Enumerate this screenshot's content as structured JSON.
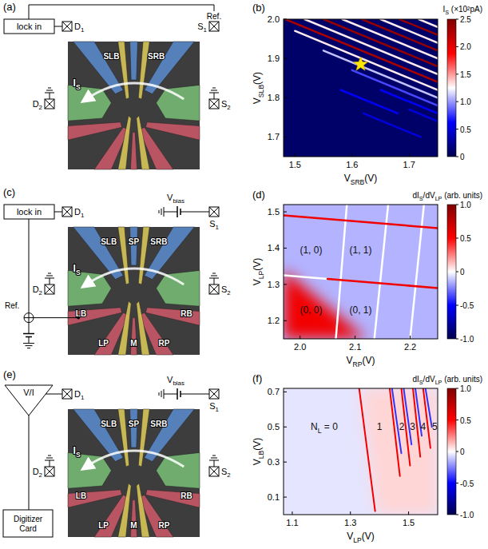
{
  "chart_data": [
    {
      "type": "diagram",
      "title": "(a)",
      "labels": {
        "lock_in": "lock in",
        "d1": [
          {
            "t": "D"
          },
          {
            "sub": "1"
          }
        ],
        "s1": [
          {
            "t": "S"
          },
          {
            "sub": "1"
          }
        ],
        "ref": "Ref.",
        "d2": [
          {
            "t": "D"
          },
          {
            "sub": "2"
          }
        ],
        "s2": [
          {
            "t": "S"
          },
          {
            "sub": "2"
          }
        ],
        "current": [
          {
            "t": "I"
          },
          {
            "sub": "S"
          }
        ],
        "top_gates": [
          "SLB",
          "SRB"
        ]
      }
    },
    {
      "type": "heatmap",
      "title": "(b)",
      "xlabel": [
        {
          "t": "V"
        },
        {
          "sub": "SRB"
        },
        {
          "t": "(V)"
        }
      ],
      "ylabel": [
        {
          "t": "V"
        },
        {
          "sub": "SLB"
        },
        {
          "t": "(V)"
        }
      ],
      "xlim": [
        1.48,
        1.75
      ],
      "xticks": [
        1.5,
        1.6,
        1.7
      ],
      "ylim": [
        1.65,
        2.0
      ],
      "yticks": [
        1.7,
        1.8,
        1.9,
        {
          "value": 2,
          "label": "2.0"
        }
      ],
      "colorbar": {
        "label": [
          {
            "t": "I"
          },
          {
            "sub": "S"
          },
          {
            "t": " (×10²pA)"
          }
        ],
        "range": [
          0,
          2.5
        ],
        "ticks": [
          0,
          0.5,
          {
            "value": 1,
            "label": "1.0"
          },
          1.5,
          {
            "value": 2,
            "label": "2.0"
          },
          2.5
        ]
      },
      "background": 0.1,
      "lines": [
        {
          "x": [
            1.7,
            1.75
          ],
          "y": [
            1.77,
            1.74
          ],
          "value": 0.5
        },
        {
          "x": [
            1.65,
            1.75
          ],
          "y": [
            1.82,
            1.76
          ],
          "value": 0.6
        },
        {
          "x": [
            1.6,
            1.75
          ],
          "y": [
            1.87,
            1.78
          ],
          "value": 0.8
        },
        {
          "x": [
            1.55,
            1.75
          ],
          "y": [
            1.92,
            1.8
          ],
          "value": 1.1
        },
        {
          "x": [
            1.5,
            1.75
          ],
          "y": [
            1.97,
            1.82
          ],
          "value": 1.3
        },
        {
          "x": [
            1.483,
            1.75
          ],
          "y": [
            2.0,
            1.84
          ],
          "value": 2.3
        },
        {
          "x": [
            1.517,
            1.75
          ],
          "y": [
            2.0,
            1.86
          ],
          "value": 1.3
        },
        {
          "x": [
            1.55,
            1.75
          ],
          "y": [
            2.0,
            1.88
          ],
          "value": 2.4
        },
        {
          "x": [
            1.583,
            1.75
          ],
          "y": [
            2.0,
            1.9
          ],
          "value": 1.3
        },
        {
          "x": [
            1.617,
            1.75
          ],
          "y": [
            2.0,
            1.92
          ],
          "value": 2.4
        },
        {
          "x": [
            1.65,
            1.75
          ],
          "y": [
            2.0,
            1.94
          ],
          "value": 1.3
        },
        {
          "x": [
            1.683,
            1.75
          ],
          "y": [
            2.0,
            1.96
          ],
          "value": 2.4
        },
        {
          "x": [
            1.717,
            1.75
          ],
          "y": [
            2.0,
            1.98
          ],
          "value": 1.3
        },
        {
          "x": [
            1.58,
            1.68
          ],
          "y": [
            1.82,
            1.76
          ],
          "value": 0.6
        },
        {
          "x": [
            1.62,
            1.72
          ],
          "y": [
            1.76,
            1.7
          ],
          "value": 0.5
        }
      ],
      "markers": [
        {
          "x": 1.615,
          "y": 1.885,
          "marker": "star",
          "color": "#ffe600"
        }
      ]
    },
    {
      "type": "diagram",
      "title": "(c)",
      "labels": {
        "lock_in": "lock in",
        "d1": [
          {
            "t": "D"
          },
          {
            "sub": "1"
          }
        ],
        "v_bias": [
          {
            "t": "V"
          },
          {
            "sub": "bias"
          }
        ],
        "s1": [
          {
            "t": "S"
          },
          {
            "sub": "1"
          }
        ],
        "ref": "Ref.",
        "d2": [
          {
            "t": "D"
          },
          {
            "sub": "2"
          }
        ],
        "s2": [
          {
            "t": "S"
          },
          {
            "sub": "2"
          }
        ],
        "current": [
          {
            "t": "I"
          },
          {
            "sub": "S"
          }
        ],
        "top_gates": [
          "SLB",
          "SP",
          "SRB"
        ],
        "bottom_gates": [
          "LB",
          "LP",
          "M",
          "RP",
          "RB"
        ]
      }
    },
    {
      "type": "heatmap",
      "title": "(d)",
      "xlabel": [
        {
          "t": "V"
        },
        {
          "sub": "RP"
        },
        {
          "t": "(V)"
        }
      ],
      "ylabel": [
        {
          "t": "V"
        },
        {
          "sub": "LP"
        },
        {
          "t": "(V)"
        }
      ],
      "xlim": [
        1.97,
        2.25
      ],
      "xticks": [
        {
          "value": 2,
          "label": "2.0"
        },
        2.1,
        2.2
      ],
      "ylim": [
        1.15,
        1.52
      ],
      "yticks": [
        1.2,
        1.3,
        1.4,
        1.5
      ],
      "colorbar": {
        "label": [
          {
            "t": "dI"
          },
          {
            "sub": "S"
          },
          {
            "t": "/dV"
          },
          {
            "sub": "LP"
          },
          {
            "t": " (arb. units)"
          }
        ],
        "range": [
          -1,
          1
        ],
        "ticks": [
          {
            "value": -1,
            "label": "-1.0"
          },
          -0.5,
          0,
          0.5,
          {
            "value": 1,
            "label": "1.0"
          }
        ]
      },
      "background": -0.15,
      "regions": [
        {
          "x": [
            1.97,
            2.12,
            1.97
          ],
          "y": [
            1.15,
            1.15,
            1.34
          ],
          "value": 0.55
        }
      ],
      "lines": [
        {
          "x": [
            2.085,
            2.065
          ],
          "y": [
            1.52,
            1.15
          ],
          "value": 0.0
        },
        {
          "x": [
            2.16,
            2.135
          ],
          "y": [
            1.52,
            1.15
          ],
          "value": 0.0
        },
        {
          "x": [
            2.225,
            2.2
          ],
          "y": [
            1.52,
            1.15
          ],
          "value": 0.0
        },
        {
          "x": [
            1.97,
            2.25
          ],
          "y": [
            1.49,
            1.455
          ],
          "value": 0.55
        },
        {
          "x": [
            1.97,
            2.05
          ],
          "y": [
            1.325,
            1.315
          ],
          "value": 0.0
        },
        {
          "x": [
            2.05,
            2.25
          ],
          "y": [
            1.315,
            1.29
          ],
          "value": 0.55
        }
      ],
      "annotations": [
        {
          "text": "(1, 0)",
          "x": 2.02,
          "y": 1.395
        },
        {
          "text": "(1, 1)",
          "x": 2.11,
          "y": 1.395
        },
        {
          "text": "(0, 0)",
          "x": 2.02,
          "y": 1.23
        },
        {
          "text": "(0, 1)",
          "x": 2.11,
          "y": 1.23
        }
      ]
    },
    {
      "type": "diagram",
      "title": "(e)",
      "labels": {
        "amplifier": "V/I",
        "digitizer": "Digitizer Card",
        "d1": [
          {
            "t": "D"
          },
          {
            "sub": "1"
          }
        ],
        "v_bias": [
          {
            "t": "V"
          },
          {
            "sub": "bias"
          }
        ],
        "s1": [
          {
            "t": "S"
          },
          {
            "sub": "1"
          }
        ],
        "d2": [
          {
            "t": "D"
          },
          {
            "sub": "2"
          }
        ],
        "s2": [
          {
            "t": "S"
          },
          {
            "sub": "2"
          }
        ],
        "current": [
          {
            "t": "I"
          },
          {
            "sub": "S"
          }
        ],
        "top_gates": [
          "SLB",
          "SP",
          "SRB"
        ],
        "bottom_gates": [
          "LB",
          "LP",
          "M",
          "RP",
          "RB"
        ]
      }
    },
    {
      "type": "heatmap",
      "title": "(f)",
      "xlabel": [
        {
          "t": "V"
        },
        {
          "sub": "LP"
        },
        {
          "t": "(V)"
        }
      ],
      "ylabel": [
        {
          "t": "V"
        },
        {
          "sub": "LB"
        },
        {
          "t": "(V)"
        }
      ],
      "xlim": [
        1.07,
        1.6
      ],
      "xticks": [
        1.1,
        1.3,
        1.5
      ],
      "ylim": [
        0.0,
        0.72
      ],
      "yticks": [
        0.1,
        0.3,
        0.5,
        0.7
      ],
      "colorbar": {
        "label": [
          {
            "t": "dI"
          },
          {
            "sub": "S"
          },
          {
            "t": "/dV"
          },
          {
            "sub": "LP"
          },
          {
            "t": " (arb. units)"
          }
        ],
        "range": [
          -1,
          1
        ],
        "ticks": [
          {
            "value": -1,
            "label": "-1.0"
          },
          -0.5,
          0,
          0.5,
          {
            "value": 1,
            "label": "1.0"
          }
        ]
      },
      "background": -0.05,
      "regions": [
        {
          "x": [
            1.335,
            1.6,
            1.6,
            1.39
          ],
          "y": [
            0.72,
            0.72,
            0.0,
            0.0
          ],
          "value": 0.08
        }
      ],
      "lines": [
        {
          "x": [
            1.33,
            1.385
          ],
          "y": [
            0.72,
            0.02
          ],
          "value": 0.55
        },
        {
          "x": [
            1.435,
            1.47
          ],
          "y": [
            0.72,
            0.22
          ],
          "value": 0.55
        },
        {
          "x": [
            1.443,
            1.475
          ],
          "y": [
            0.72,
            0.35
          ],
          "value": -0.4
        },
        {
          "x": [
            1.475,
            1.505
          ],
          "y": [
            0.72,
            0.28
          ],
          "value": 0.55
        },
        {
          "x": [
            1.483,
            1.51
          ],
          "y": [
            0.72,
            0.4
          ],
          "value": -0.4
        },
        {
          "x": [
            1.515,
            1.54
          ],
          "y": [
            0.72,
            0.33
          ],
          "value": 0.55
        },
        {
          "x": [
            1.523,
            1.545
          ],
          "y": [
            0.72,
            0.45
          ],
          "value": -0.4
        },
        {
          "x": [
            1.55,
            1.575
          ],
          "y": [
            0.72,
            0.38
          ],
          "value": 0.55
        },
        {
          "x": [
            1.558,
            1.58
          ],
          "y": [
            0.72,
            0.5
          ],
          "value": -0.4
        }
      ],
      "annotations": [
        {
          "text": [
            {
              "t": "N"
            },
            {
              "sub": "L"
            },
            {
              "t": " = 0"
            }
          ],
          "x": 1.21,
          "y": 0.5
        },
        {
          "text": "1",
          "x": 1.4,
          "y": 0.5
        },
        {
          "text": "2",
          "x": 1.477,
          "y": 0.5
        },
        {
          "text": "3",
          "x": 1.514,
          "y": 0.5
        },
        {
          "text": "4",
          "x": 1.55,
          "y": 0.5
        },
        {
          "text": "5",
          "x": 1.59,
          "y": 0.5
        }
      ]
    }
  ]
}
